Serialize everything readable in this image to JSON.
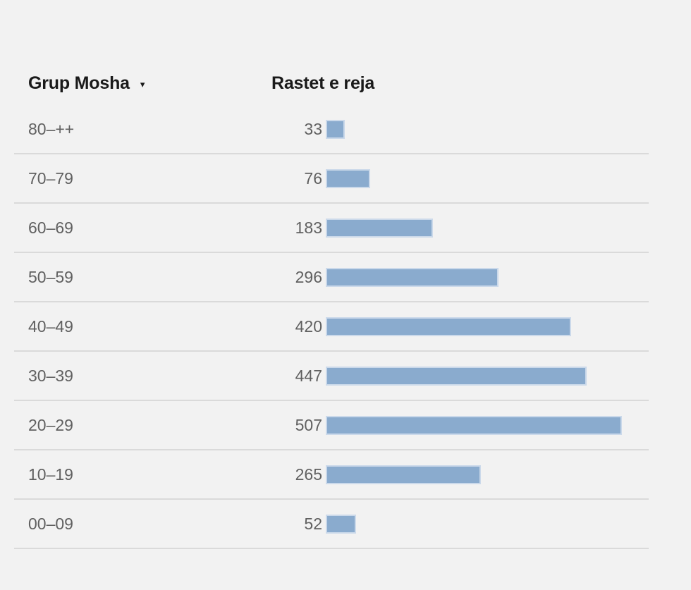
{
  "colors": {
    "page-bg": "#f2f2f2",
    "header-text": "#1a1a1a",
    "row-text": "#606060",
    "divider": "#dadada",
    "bar-fill": "#8aabce",
    "bar-halo": "#cbd9ea"
  },
  "table": {
    "columns": [
      {
        "label": "Grup Mosha",
        "sort_icon": "▾"
      },
      {
        "label": "Rastet e reja"
      }
    ],
    "rows": [
      {
        "group": "80–++",
        "value": 33
      },
      {
        "group": "70–79",
        "value": 76
      },
      {
        "group": "60–69",
        "value": 183
      },
      {
        "group": "50–59",
        "value": 296
      },
      {
        "group": "40–49",
        "value": 420
      },
      {
        "group": "30–39",
        "value": 447
      },
      {
        "group": "20–29",
        "value": 507
      },
      {
        "group": "10–19",
        "value": 265
      },
      {
        "group": "00–09",
        "value": 52
      }
    ]
  },
  "chart_data": {
    "type": "bar",
    "orientation": "horizontal",
    "title": "Rastet e reja",
    "ylabel": "Grup Mosha",
    "xlabel": "Rastet e reja",
    "categories": [
      "80–++",
      "70–79",
      "60–69",
      "50–59",
      "40–49",
      "30–39",
      "20–29",
      "10–19",
      "00–09"
    ],
    "values": [
      33,
      76,
      183,
      296,
      420,
      447,
      507,
      265,
      52
    ],
    "xlim": [
      0,
      507
    ],
    "grid": false,
    "legend": "none",
    "bar_color": "#8aabce",
    "data_labels": "left-of-bar"
  }
}
